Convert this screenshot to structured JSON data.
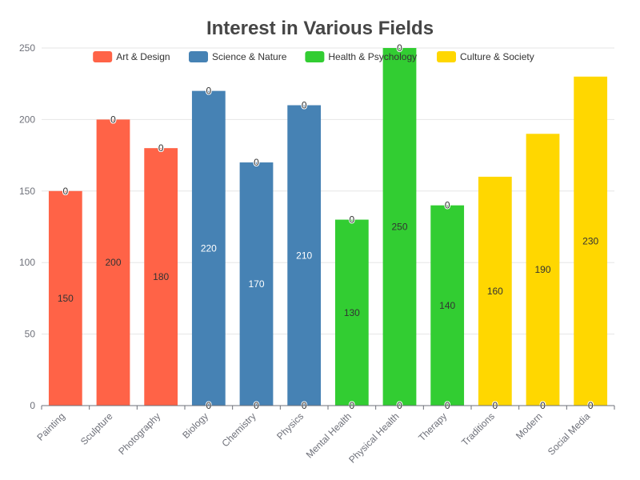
{
  "chart_data": {
    "type": "bar",
    "title": "Interest in Various Fields",
    "xlabel": "",
    "ylabel": "",
    "ylim": [
      0,
      250
    ],
    "yticks": [
      0,
      50,
      100,
      150,
      200,
      250
    ],
    "grid": true,
    "legend_position": "top",
    "categories": [
      "Painting",
      "Sculpture",
      "Photography",
      "Biology",
      "Chemistry",
      "Physics",
      "Mental Health",
      "Physical Health",
      "Therapy",
      "Traditions",
      "Modern",
      "Social Media"
    ],
    "series": [
      {
        "name": "Art & Design",
        "color": "#ff6347",
        "label_color": "#333333",
        "values": [
          150,
          200,
          180,
          0,
          0,
          0,
          0,
          0,
          0,
          0,
          0,
          0
        ]
      },
      {
        "name": "Science & Nature",
        "color": "#4682b4",
        "label_color": "#ffffff",
        "values": [
          0,
          0,
          0,
          220,
          170,
          210,
          0,
          0,
          0,
          0,
          0,
          0
        ]
      },
      {
        "name": "Health & Psychology",
        "color": "#32cd32",
        "label_color": "#333333",
        "values": [
          0,
          0,
          0,
          0,
          0,
          0,
          130,
          250,
          140,
          0,
          0,
          0
        ]
      },
      {
        "name": "Culture & Society",
        "color": "#ffd700",
        "label_color": "#333333",
        "values": [
          0,
          0,
          0,
          0,
          0,
          0,
          0,
          0,
          0,
          160,
          190,
          230
        ]
      }
    ],
    "stacked": true,
    "zero_label": "0"
  }
}
